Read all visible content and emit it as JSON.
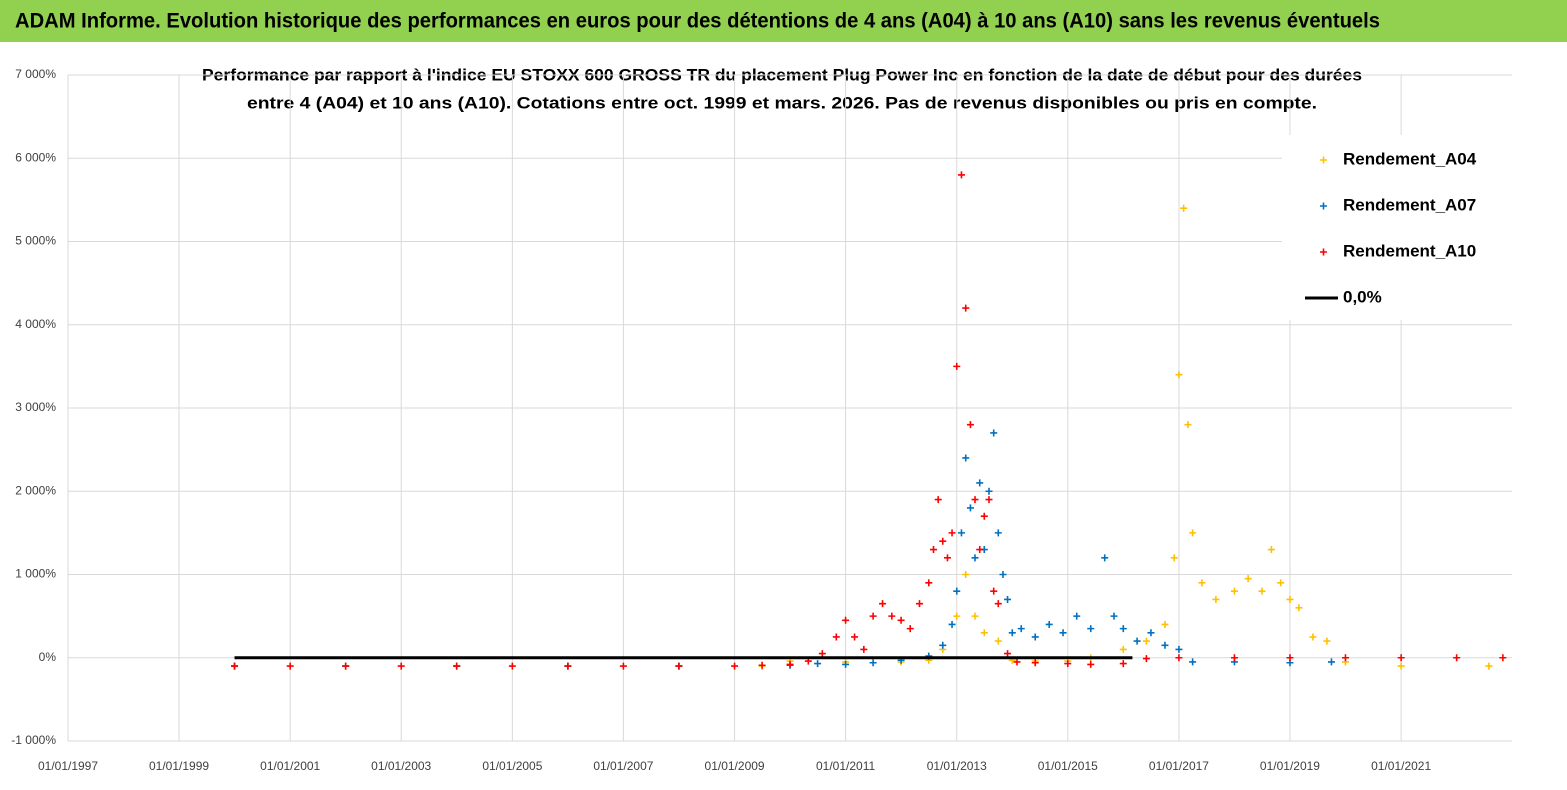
{
  "chart_data": {
    "type": "scatter",
    "header": "ADAM Informe. Evolution historique des performances en euros pour des détentions de 4 ans (A04) à 10 ans (A10) sans les revenus éventuels",
    "title": [
      "Performance par rapport à l'indice EU STOXX 600 GROSS TR  du placement Plug Power Inc en fonction de la date de début pour des durées",
      "entre 4 (A04) et 10 ans (A10). Cotations entre oct. 1999 et mars. 2026. Pas de revenus disponibles ou pris en compte."
    ],
    "xlim": [
      "1997-01-01",
      "2022-12-31"
    ],
    "xticks": [
      {
        "value": "1997-01-01",
        "label": "01/01/1997"
      },
      {
        "value": "1999-01-01",
        "label": "01/01/1999"
      },
      {
        "value": "2001-01-01",
        "label": "01/01/2001"
      },
      {
        "value": "2003-01-01",
        "label": "01/01/2003"
      },
      {
        "value": "2005-01-01",
        "label": "01/01/2005"
      },
      {
        "value": "2007-01-01",
        "label": "01/01/2007"
      },
      {
        "value": "2009-01-01",
        "label": "01/01/2009"
      },
      {
        "value": "2011-01-01",
        "label": "01/01/2011"
      },
      {
        "value": "2013-01-01",
        "label": "01/01/2013"
      },
      {
        "value": "2015-01-01",
        "label": "01/01/2015"
      },
      {
        "value": "2017-01-01",
        "label": "01/01/2017"
      },
      {
        "value": "2019-01-01",
        "label": "01/01/2019"
      },
      {
        "value": "2021-01-01",
        "label": "01/01/2021"
      }
    ],
    "ylim": [
      -1000,
      7000
    ],
    "yticks": [
      {
        "value": -1000,
        "label": "-1 000%"
      },
      {
        "value": 0,
        "label": "0%"
      },
      {
        "value": 1000,
        "label": "1 000%"
      },
      {
        "value": 2000,
        "label": "2 000%"
      },
      {
        "value": 3000,
        "label": "3 000%"
      },
      {
        "value": 4000,
        "label": "4 000%"
      },
      {
        "value": 5000,
        "label": "5 000%"
      },
      {
        "value": 6000,
        "label": "6 000%"
      },
      {
        "value": 7000,
        "label": "7 000%"
      }
    ],
    "grid": true,
    "series": [
      {
        "name": "Rendement_A04",
        "color": "#FFC000",
        "x": [
          "2000-01-01",
          "2002-01-01",
          "2004-01-01",
          "2006-01-01",
          "2008-01-01",
          "2009-07-01",
          "2010-01-01",
          "2011-01-01",
          "2012-01-01",
          "2012-07-01",
          "2012-10-01",
          "2013-01-01",
          "2013-03-01",
          "2013-05-01",
          "2013-07-01",
          "2013-10-01",
          "2014-01-01",
          "2014-06-01",
          "2015-01-01",
          "2015-06-01",
          "2016-01-01",
          "2016-06-01",
          "2016-10-01",
          "2016-12-01",
          "2017-01-01",
          "2017-02-01",
          "2017-03-01",
          "2017-04-01",
          "2017-06-01",
          "2017-09-01",
          "2018-01-01",
          "2018-04-01",
          "2018-07-01",
          "2018-09-01",
          "2018-11-01",
          "2019-01-01",
          "2019-03-01",
          "2019-06-01",
          "2019-09-01",
          "2020-01-01",
          "2021-01-01",
          "2022-08-01"
        ],
        "values": [
          -100,
          -100,
          -100,
          -100,
          -100,
          -100,
          -40,
          -50,
          -50,
          -30,
          100,
          500,
          1000,
          500,
          300,
          200,
          -30,
          -40,
          -40,
          0,
          100,
          200,
          400,
          1200,
          3400,
          5400,
          2800,
          1500,
          900,
          700,
          800,
          950,
          800,
          1300,
          900,
          700,
          600,
          250,
          200,
          -50,
          -100,
          -100
        ]
      },
      {
        "name": "Rendement_A07",
        "color": "#0070C0",
        "x": [
          "2000-01-01",
          "2002-01-01",
          "2004-01-01",
          "2006-01-01",
          "2008-01-01",
          "2010-01-01",
          "2010-07-01",
          "2011-01-01",
          "2011-07-01",
          "2012-01-01",
          "2012-07-01",
          "2012-10-01",
          "2012-12-01",
          "2013-01-01",
          "2013-02-01",
          "2013-03-01",
          "2013-04-01",
          "2013-05-01",
          "2013-06-01",
          "2013-07-01",
          "2013-08-01",
          "2013-09-01",
          "2013-10-01",
          "2013-11-01",
          "2013-12-01",
          "2014-01-01",
          "2014-03-01",
          "2014-06-01",
          "2014-09-01",
          "2014-12-01",
          "2015-03-01",
          "2015-06-01",
          "2015-09-01",
          "2015-11-01",
          "2016-01-01",
          "2016-04-01",
          "2016-07-01",
          "2016-10-01",
          "2017-01-01",
          "2017-04-01",
          "2018-01-01",
          "2019-01-01",
          "2019-10-01"
        ],
        "values": [
          -100,
          -100,
          -100,
          -100,
          -100,
          -90,
          -70,
          -80,
          -60,
          -30,
          20,
          150,
          400,
          800,
          1500,
          2400,
          1800,
          1200,
          2100,
          1300,
          2000,
          2700,
          1500,
          1000,
          700,
          300,
          350,
          250,
          400,
          300,
          500,
          350,
          1200,
          500,
          350,
          200,
          300,
          150,
          100,
          -50,
          -50,
          -60,
          -50
        ]
      },
      {
        "name": "Rendement_A10",
        "color": "#FF0000",
        "x": [
          "2000-01-01",
          "2001-01-01",
          "2002-01-01",
          "2003-01-01",
          "2004-01-01",
          "2005-01-01",
          "2006-01-01",
          "2007-01-01",
          "2008-01-01",
          "2009-01-01",
          "2009-07-01",
          "2010-01-01",
          "2010-05-01",
          "2010-08-01",
          "2010-11-01",
          "2011-01-01",
          "2011-03-01",
          "2011-05-01",
          "2011-07-01",
          "2011-09-01",
          "2011-11-01",
          "2012-01-01",
          "2012-03-01",
          "2012-05-01",
          "2012-07-01",
          "2012-08-01",
          "2012-09-01",
          "2012-10-01",
          "2012-11-01",
          "2012-12-01",
          "2013-01-01",
          "2013-02-01",
          "2013-03-01",
          "2013-04-01",
          "2013-05-01",
          "2013-06-01",
          "2013-07-01",
          "2013-08-01",
          "2013-09-01",
          "2013-10-01",
          "2013-12-01",
          "2014-02-01",
          "2014-06-01",
          "2015-01-01",
          "2015-06-01",
          "2016-01-01",
          "2016-06-01",
          "2017-01-01",
          "2018-01-01",
          "2019-01-01",
          "2020-01-01",
          "2021-01-01",
          "2022-01-01",
          "2022-11-01"
        ],
        "values": [
          -100,
          -100,
          -100,
          -100,
          -100,
          -100,
          -100,
          -100,
          -100,
          -100,
          -90,
          -80,
          -40,
          50,
          250,
          450,
          250,
          100,
          500,
          650,
          500,
          450,
          350,
          650,
          900,
          1300,
          1900,
          1400,
          1200,
          1500,
          3500,
          5800,
          4200,
          2800,
          1900,
          1300,
          1700,
          1900,
          800,
          650,
          50,
          -50,
          -60,
          -70,
          -80,
          -70,
          -10,
          0,
          0,
          0,
          0,
          0,
          0,
          0
        ]
      },
      {
        "name": "0,0%",
        "color": "#000000",
        "mode": "line",
        "x": [
          "2000-01-01",
          "2016-03-01"
        ],
        "values": [
          0,
          0
        ]
      }
    ]
  }
}
